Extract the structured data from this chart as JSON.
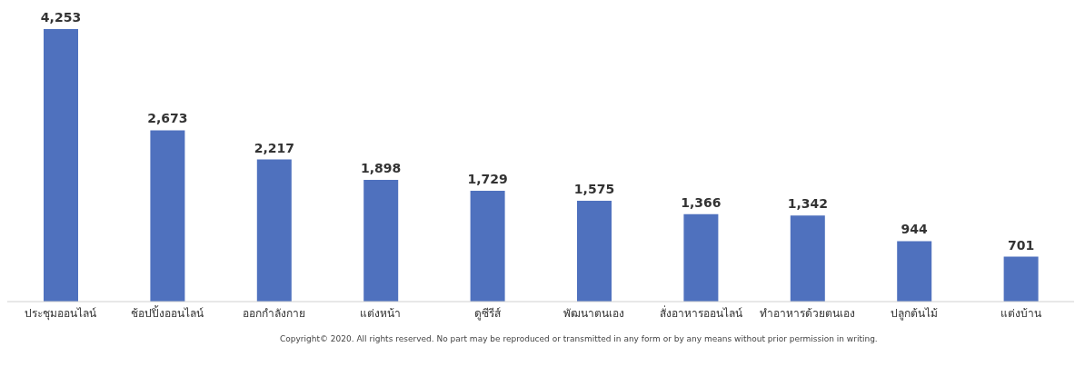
{
  "chart_data": {
    "type": "bar",
    "categories": [
      "ประชุมออนไลน์",
      "ช้อปปิ้งออนไลน์",
      "ออกกำลังกาย",
      "แต่งหน้า",
      "ดูซีรีส์",
      "พัฒนาตนเอง",
      "สั่งอาหารออนไลน์",
      "ทำอาหารด้วยตนเอง",
      "ปลูกต้นไม้",
      "แต่งบ้าน"
    ],
    "values": [
      4253,
      2673,
      2217,
      1898,
      1729,
      1575,
      1366,
      1342,
      944,
      701
    ],
    "color": "#4f71be",
    "value_labels": [
      "4,253",
      "2,673",
      "2,217",
      "1,898",
      "1,729",
      "1,575",
      "1,366",
      "1,342",
      "944",
      "701"
    ],
    "grid": false,
    "legend": false,
    "annotations": [
      "Copyright© 2020. All rights reserved. No part may be reproduced or transmitted in any form or by any means without prior permission in writing."
    ]
  }
}
